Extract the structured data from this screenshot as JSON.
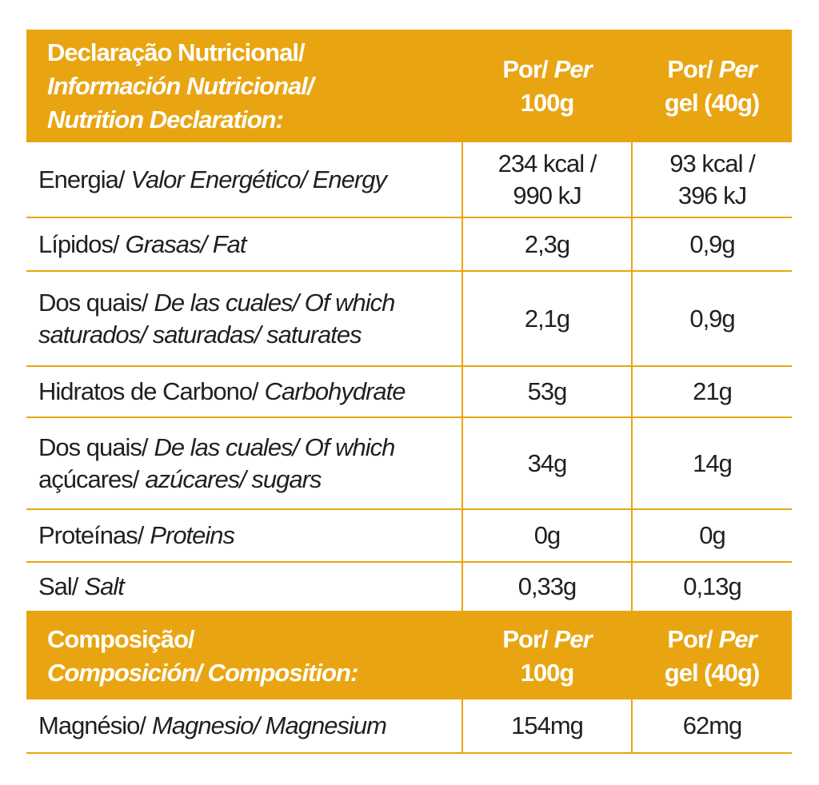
{
  "nutrition": {
    "header": [
      [
        [
          {
            "text": "Declaração Nutricional/",
            "italic": false
          }
        ],
        [
          {
            "text": "Información Nutricional/",
            "italic": true
          }
        ],
        [
          {
            "text": "Nutrition Declaration:",
            "italic": true
          }
        ]
      ],
      [
        [
          {
            "text": "Por/",
            "italic": false
          },
          {
            "text": "Per",
            "italic": true
          }
        ],
        [
          {
            "text": "100g",
            "italic": false
          }
        ]
      ],
      [
        [
          {
            "text": "Por/",
            "italic": false
          },
          {
            "text": "Per",
            "italic": true
          }
        ],
        [
          {
            "text": "gel (40g)",
            "italic": false
          }
        ]
      ]
    ],
    "rows": [
      [
        [
          [
            {
              "text": "Energia/",
              "italic": false
            },
            {
              "text": "Valor Energético/ Energy",
              "italic": true
            }
          ]
        ],
        [
          [
            {
              "text": "234 kcal /",
              "italic": false
            }
          ],
          [
            {
              "text": "990 kJ",
              "italic": false
            }
          ]
        ],
        [
          [
            {
              "text": "93 kcal /",
              "italic": false
            }
          ],
          [
            {
              "text": "396 kJ",
              "italic": false
            }
          ]
        ]
      ],
      [
        [
          [
            {
              "text": "Lípidos/",
              "italic": false
            },
            {
              "text": "Grasas/ Fat",
              "italic": true
            }
          ]
        ],
        "2,3g",
        "0,9g"
      ],
      [
        [
          [
            {
              "text": "Dos quais/",
              "italic": false
            },
            {
              "text": "De las cuales/ Of which",
              "italic": true
            }
          ],
          [
            {
              "text": "saturados/",
              "italic": true
            },
            {
              "text": "saturadas/ saturates",
              "italic": true
            }
          ]
        ],
        "2,1g",
        "0,9g"
      ],
      [
        [
          [
            {
              "text": "Hidratos de Carbono/",
              "italic": false
            },
            {
              "text": "Carbohydrate",
              "italic": true
            }
          ]
        ],
        "53g",
        "21g"
      ],
      [
        [
          [
            {
              "text": "Dos quais/",
              "italic": false
            },
            {
              "text": "De las cuales/ Of which",
              "italic": true
            }
          ],
          [
            {
              "text": "açúcares/",
              "italic": false
            },
            {
              "text": "azúcares/ sugars",
              "italic": true
            }
          ]
        ],
        "34g",
        "14g"
      ],
      [
        [
          [
            {
              "text": "Proteínas/",
              "italic": false
            },
            {
              "text": "Proteins",
              "italic": true
            }
          ]
        ],
        "0g",
        "0g"
      ],
      [
        [
          [
            {
              "text": "Sal/",
              "italic": false
            },
            {
              "text": "Salt",
              "italic": true
            }
          ]
        ],
        "0,33g",
        "0,13g"
      ]
    ]
  },
  "composition": {
    "header": [
      [
        [
          {
            "text": "Composição/",
            "italic": false
          }
        ],
        [
          {
            "text": "Composición/ Composition:",
            "italic": true
          }
        ]
      ],
      [
        [
          {
            "text": "Por/",
            "italic": false
          },
          {
            "text": "Per",
            "italic": true
          }
        ],
        [
          {
            "text": "100g",
            "italic": false
          }
        ]
      ],
      [
        [
          {
            "text": "Por/",
            "italic": false
          },
          {
            "text": "Per",
            "italic": true
          }
        ],
        [
          {
            "text": "gel (40g)",
            "italic": false
          }
        ]
      ]
    ],
    "rows": [
      [
        [
          [
            {
              "text": "Magnésio/",
              "italic": false
            },
            {
              "text": "Magnesio/ Magnesium",
              "italic": true
            }
          ]
        ],
        "154mg",
        "62mg"
      ]
    ]
  }
}
